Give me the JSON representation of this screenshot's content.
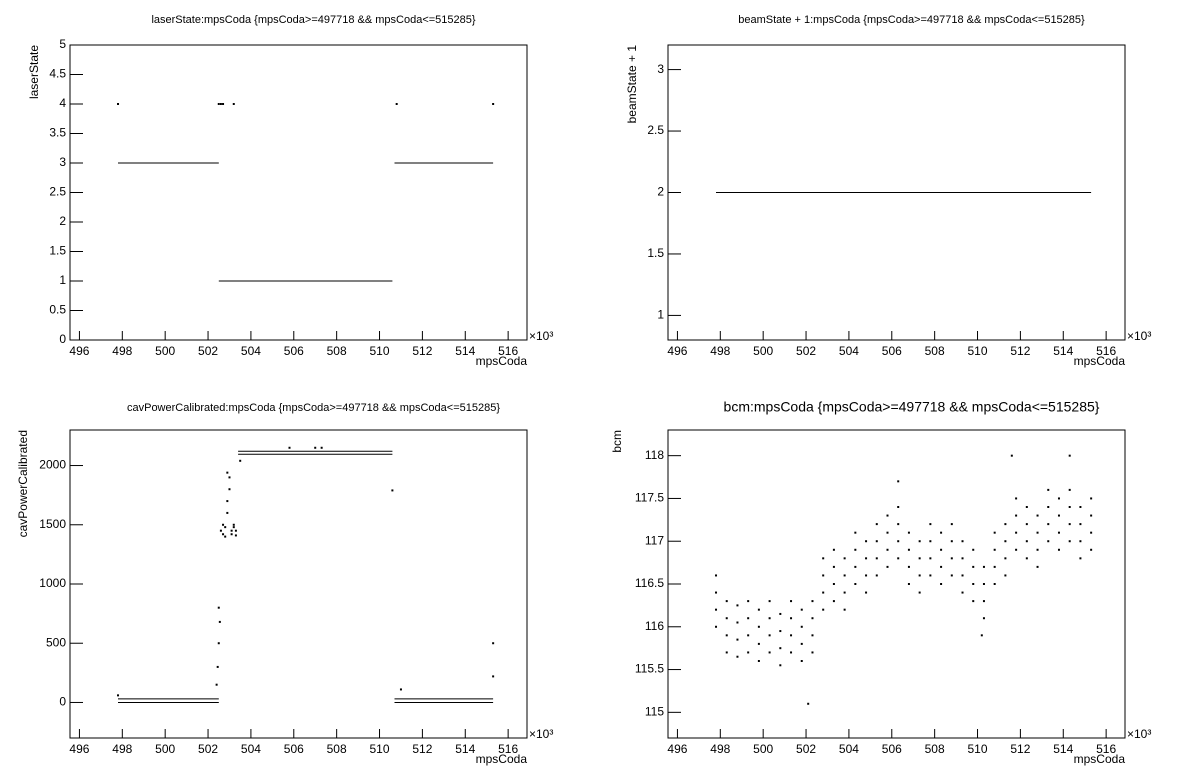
{
  "chart_data": [
    {
      "type": "scatter",
      "title": "laserState:mpsCoda {mpsCoda>=497718 && mpsCoda<=515285}",
      "xlabel": "mpsCoda",
      "ylabel": "laserState",
      "x_exponent": "×10³",
      "xlim": [
        495.56,
        516.88
      ],
      "xticks": [
        496,
        498,
        500,
        502,
        504,
        506,
        508,
        510,
        512,
        514,
        516
      ],
      "ylim": [
        0,
        5
      ],
      "yticks": [
        0,
        0.5,
        1,
        1.5,
        2,
        2.5,
        3,
        3.5,
        4,
        4.5,
        5
      ],
      "series": [
        {
          "style": "line",
          "color": "#000000",
          "x": [
            497.8,
            502.5,
            502.5,
            502.5,
            510.6,
            510.6,
            510.7,
            515.3
          ],
          "values": [
            3,
            3,
            null,
            1,
            1,
            null,
            3,
            3
          ]
        },
        {
          "style": "dots",
          "color": "#000000",
          "x": [
            497.8,
            502.5,
            502.6,
            502.7,
            503.2,
            510.8,
            515.3
          ],
          "values": [
            4,
            4,
            4,
            4,
            4,
            4,
            4
          ]
        }
      ]
    },
    {
      "type": "scatter",
      "title": "beamState + 1:mpsCoda {mpsCoda>=497718 && mpsCoda<=515285}",
      "xlabel": "mpsCoda",
      "ylabel": "beamState + 1",
      "x_exponent": "×10³",
      "xlim": [
        495.56,
        516.88
      ],
      "xticks": [
        496,
        498,
        500,
        502,
        504,
        506,
        508,
        510,
        512,
        514,
        516
      ],
      "ylim": [
        0.8,
        3.2
      ],
      "yticks": [
        1,
        1.5,
        2,
        2.5,
        3
      ],
      "series": [
        {
          "style": "line",
          "color": "#000000",
          "x": [
            497.8,
            515.3
          ],
          "values": [
            2,
            2
          ]
        }
      ]
    },
    {
      "type": "scatter",
      "title": "cavPowerCalibrated:mpsCoda {mpsCoda>=497718 && mpsCoda<=515285}",
      "xlabel": "mpsCoda",
      "ylabel": "cavPowerCalibrated",
      "x_exponent": "×10³",
      "xlim": [
        495.56,
        516.88
      ],
      "xticks": [
        496,
        498,
        500,
        502,
        504,
        506,
        508,
        510,
        512,
        514,
        516
      ],
      "ylim": [
        -300,
        2300
      ],
      "yticks": [
        0,
        500,
        1000,
        1500,
        2000
      ],
      "series": [
        {
          "style": "line",
          "color": "#000000",
          "x": [
            497.8,
            502.5,
            502.5,
            497.8,
            502.5,
            502.5,
            503.4,
            510.6,
            510.6,
            503.4,
            510.6,
            510.6,
            510.7,
            515.3,
            515.3,
            510.7,
            515.3
          ],
          "values": [
            30,
            30,
            null,
            0,
            0,
            null,
            2120,
            2120,
            null,
            2095,
            2095,
            null,
            30,
            30,
            null,
            0,
            0
          ]
        },
        {
          "style": "dots",
          "color": "#000000",
          "x": [
            497.8,
            502.4,
            502.45,
            502.5,
            502.5,
            502.55,
            502.6,
            502.7,
            502.8,
            502.9,
            503.0,
            503.1,
            503.2,
            503.3,
            502.7,
            502.8,
            502.9,
            503.0,
            503.1,
            503.2,
            503.3,
            502.9,
            503.5,
            505.8,
            507.0,
            507.3,
            510.6,
            515.3,
            515.3,
            511.0
          ],
          "values": [
            60,
            150,
            300,
            500,
            800,
            680,
            1450,
            1420,
            1480,
            1600,
            1800,
            1420,
            1500,
            1410,
            1500,
            1400,
            1700,
            1900,
            1450,
            1480,
            1450,
            1940,
            2040,
            2150,
            2150,
            2150,
            1790,
            500,
            220,
            110
          ]
        }
      ]
    },
    {
      "type": "scatter",
      "title": "bcm:mpsCoda {mpsCoda>=497718 && mpsCoda<=515285}",
      "xlabel": "mpsCoda",
      "ylabel": "bcm",
      "x_exponent": "×10³",
      "xlim": [
        495.56,
        516.88
      ],
      "xticks": [
        496,
        498,
        500,
        502,
        504,
        506,
        508,
        510,
        512,
        514,
        516
      ],
      "ylim": [
        114.7,
        118.3
      ],
      "yticks": [
        115,
        115.5,
        116,
        116.5,
        117,
        117.5,
        118
      ],
      "series": [
        {
          "style": "dots",
          "color": "#000000",
          "x": [
            497.8,
            497.8,
            497.8,
            497.8,
            498.3,
            498.3,
            498.3,
            498.3,
            498.8,
            498.8,
            498.8,
            498.8,
            499.3,
            499.3,
            499.3,
            499.3,
            499.8,
            499.8,
            499.8,
            499.8,
            500.3,
            500.3,
            500.3,
            500.3,
            500.8,
            500.8,
            500.8,
            500.8,
            501.3,
            501.3,
            501.3,
            501.3,
            501.8,
            501.8,
            501.8,
            501.8,
            502.3,
            502.3,
            502.3,
            502.3,
            502.8,
            502.8,
            502.8,
            502.8,
            503.3,
            503.3,
            503.3,
            503.3,
            503.8,
            503.8,
            503.8,
            503.8,
            504.3,
            504.3,
            504.3,
            504.3,
            504.8,
            504.8,
            504.8,
            504.8,
            505.3,
            505.3,
            505.3,
            505.3,
            505.8,
            505.8,
            505.8,
            505.8,
            506.3,
            506.3,
            506.3,
            506.3,
            506.8,
            506.8,
            506.8,
            506.8,
            507.3,
            507.3,
            507.3,
            507.3,
            507.8,
            507.8,
            507.8,
            507.8,
            508.3,
            508.3,
            508.3,
            508.3,
            508.8,
            508.8,
            508.8,
            508.8,
            509.3,
            509.3,
            509.3,
            509.3,
            509.8,
            509.8,
            509.8,
            509.8,
            510.3,
            510.3,
            510.3,
            510.3,
            510.8,
            510.8,
            510.8,
            510.8,
            511.3,
            511.3,
            511.3,
            511.3,
            511.8,
            511.8,
            511.8,
            511.8,
            512.3,
            512.3,
            512.3,
            512.3,
            512.8,
            512.8,
            512.8,
            512.8,
            513.3,
            513.3,
            513.3,
            513.3,
            513.8,
            513.8,
            513.8,
            513.8,
            514.3,
            514.3,
            514.3,
            514.3,
            514.8,
            514.8,
            514.8,
            514.8,
            515.3,
            515.3,
            515.3,
            515.3,
            502.1,
            511.6,
            514.3,
            506.3,
            510.2
          ],
          "values": [
            116.0,
            116.2,
            116.4,
            116.6,
            115.7,
            115.9,
            116.1,
            116.3,
            115.65,
            115.85,
            116.05,
            116.25,
            115.7,
            115.9,
            116.1,
            116.3,
            115.6,
            115.8,
            116.0,
            116.2,
            115.7,
            115.9,
            116.1,
            116.3,
            115.55,
            115.75,
            115.95,
            116.15,
            115.7,
            115.9,
            116.1,
            116.3,
            115.6,
            115.8,
            116.0,
            116.2,
            115.7,
            115.9,
            116.1,
            116.3,
            116.2,
            116.4,
            116.6,
            116.8,
            116.3,
            116.5,
            116.7,
            116.9,
            116.2,
            116.4,
            116.6,
            116.8,
            116.5,
            116.7,
            116.9,
            117.1,
            116.4,
            116.6,
            116.8,
            117.0,
            116.6,
            116.8,
            117.0,
            117.2,
            116.7,
            116.9,
            117.1,
            117.3,
            116.8,
            117.0,
            117.2,
            117.4,
            116.5,
            116.7,
            116.9,
            117.1,
            116.4,
            116.6,
            116.8,
            117.0,
            116.6,
            116.8,
            117.0,
            117.2,
            116.5,
            116.7,
            116.9,
            117.1,
            116.6,
            116.8,
            117.0,
            117.2,
            116.4,
            116.6,
            116.8,
            117.0,
            116.3,
            116.5,
            116.7,
            116.9,
            116.1,
            116.3,
            116.5,
            116.7,
            116.5,
            116.7,
            116.9,
            117.1,
            116.6,
            116.8,
            117.0,
            117.2,
            116.9,
            117.1,
            117.3,
            117.5,
            116.8,
            117.0,
            117.2,
            117.4,
            116.7,
            116.9,
            117.1,
            117.3,
            117.0,
            117.2,
            117.4,
            117.6,
            116.9,
            117.1,
            117.3,
            117.5,
            117.0,
            117.2,
            117.4,
            117.6,
            116.8,
            117.0,
            117.2,
            117.4,
            116.9,
            117.1,
            117.3,
            117.5,
            115.1,
            118.0,
            118.0,
            117.7,
            115.9
          ]
        }
      ]
    }
  ]
}
